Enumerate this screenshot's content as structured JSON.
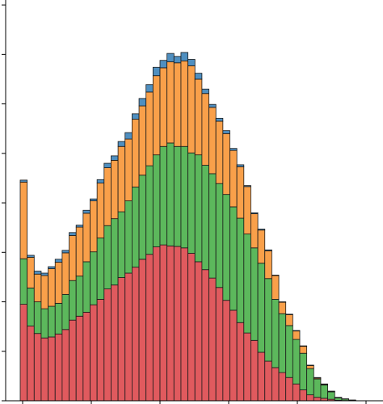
{
  "chart_data": {
    "type": "bar",
    "stacked": true,
    "title": "",
    "xlabel": "",
    "ylabel": "",
    "ylim": [
      0,
      8.1
    ],
    "grid": false,
    "legend": "none",
    "tick_labels_visible": false,
    "colors": {
      "red": "#e05a5e",
      "green": "#5cb85c",
      "orange": "#f9a04a",
      "blue": "#4f8fc0",
      "edge": "#1a1a1a",
      "axis": "#000000"
    },
    "series": [
      {
        "color_key": "red",
        "values": [
          1.95,
          1.51,
          1.36,
          1.27,
          1.29,
          1.35,
          1.44,
          1.63,
          1.71,
          1.79,
          1.94,
          2.05,
          2.26,
          2.34,
          2.49,
          2.58,
          2.7,
          2.86,
          2.96,
          3.11,
          3.15,
          3.13,
          3.12,
          3.09,
          2.98,
          2.81,
          2.65,
          2.48,
          2.29,
          2.03,
          1.83,
          1.58,
          1.37,
          1.22,
          0.98,
          0.8,
          0.67,
          0.57,
          0.47,
          0.34,
          0.22,
          0.12,
          0.07,
          0.05,
          0.03,
          0.01,
          0.005,
          0.002
        ]
      },
      {
        "color_key": "green",
        "values": [
          0.92,
          0.77,
          0.64,
          0.59,
          0.62,
          0.62,
          0.71,
          0.8,
          0.81,
          1.02,
          1.07,
          1.24,
          1.28,
          1.34,
          1.33,
          1.46,
          1.62,
          1.7,
          1.79,
          1.86,
          1.99,
          2.08,
          2.02,
          2.05,
          2.03,
          2.16,
          2.11,
          2.11,
          2.1,
          2.14,
          2.09,
          2.11,
          2.0,
          1.87,
          1.8,
          1.67,
          1.38,
          1.19,
          1.05,
          0.9,
          0.74,
          0.53,
          0.37,
          0.27,
          0.15,
          0.05,
          0.03,
          0.01
        ]
      },
      {
        "color_key": "orange",
        "values": [
          1.55,
          0.62,
          0.56,
          0.67,
          0.76,
          0.83,
          0.84,
          0.91,
          0.99,
          0.98,
          1.03,
          1.11,
          1.17,
          1.18,
          1.32,
          1.25,
          1.37,
          1.4,
          1.49,
          1.6,
          1.59,
          1.64,
          1.69,
          1.73,
          1.76,
          1.53,
          1.45,
          1.34,
          1.26,
          1.23,
          1.14,
          1.04,
          0.96,
          0.69,
          0.67,
          0.56,
          0.48,
          0.23,
          0.22,
          0.17,
          0.14,
          0.06,
          0.02,
          0.01,
          0.01,
          0.005,
          0.002,
          0.001
        ]
      },
      {
        "color_key": "blue",
        "values": [
          0.04,
          0.04,
          0.06,
          0.05,
          0.04,
          0.06,
          0.05,
          0.06,
          0.04,
          0.06,
          0.04,
          0.07,
          0.09,
          0.09,
          0.1,
          0.13,
          0.11,
          0.15,
          0.15,
          0.17,
          0.15,
          0.17,
          0.13,
          0.17,
          0.13,
          0.12,
          0.09,
          0.06,
          0.06,
          0.06,
          0.04,
          0.04,
          0.02,
          0.02,
          0.02,
          0.02,
          0.01,
          0.01,
          0.01,
          0.01,
          0.01,
          0.01,
          0.01,
          0.01,
          0.005,
          0.005,
          0.002,
          0.001
        ]
      }
    ],
    "y_ticks": [
      0,
      1,
      2,
      3,
      4,
      5,
      6,
      7,
      8
    ],
    "x_tick_count": 6
  }
}
